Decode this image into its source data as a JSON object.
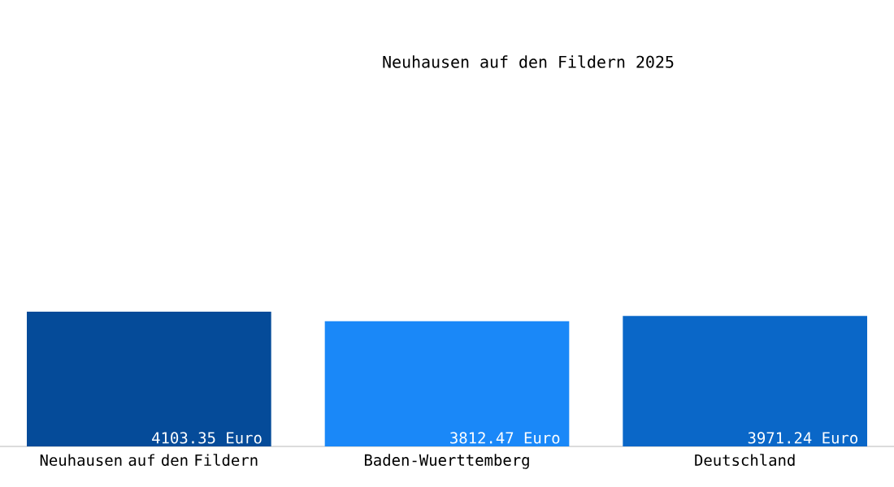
{
  "chart_data": {
    "type": "bar",
    "title": "Neuhausen auf den Fildern 2025",
    "categories": [
      "Neuhausen auf den Fildern",
      "Baden-Wuerttemberg",
      "Deutschland"
    ],
    "values": [
      4103.35,
      3812.47,
      3971.24
    ],
    "colors": [
      "#054b99",
      "#1a88f8",
      "#0a67c8"
    ],
    "value_labels": [
      "4103.35 Euro",
      "3812.47 Euro",
      "3971.24 Euro"
    ],
    "tick_labels": "x"
  }
}
